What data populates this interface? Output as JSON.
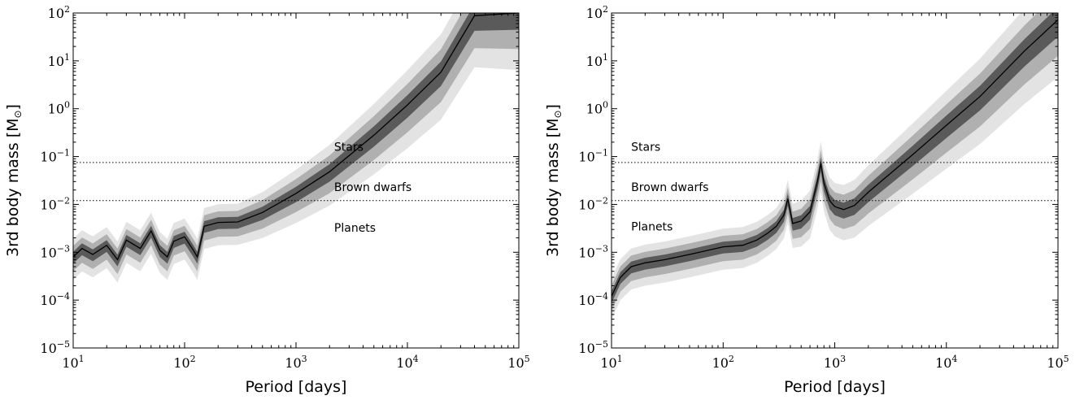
{
  "chart_data": [
    {
      "type": "area",
      "xlabel": "Period [days]",
      "ylabel": "3rd body mass [M",
      "ylabel_sub": "⊙",
      "ylabel_close": "]",
      "x_scale": "log",
      "y_scale": "log",
      "xlim": [
        10,
        100000
      ],
      "ylim": [
        1e-05,
        100
      ],
      "x_ticks": [
        {
          "base": "10",
          "exp": "1"
        },
        {
          "base": "10",
          "exp": "2"
        },
        {
          "base": "10",
          "exp": "3"
        },
        {
          "base": "10",
          "exp": "4"
        },
        {
          "base": "10",
          "exp": "5"
        }
      ],
      "y_ticks": [
        {
          "base": "10",
          "exp": "−5"
        },
        {
          "base": "10",
          "exp": "−4"
        },
        {
          "base": "10",
          "exp": "−3"
        },
        {
          "base": "10",
          "exp": "−2"
        },
        {
          "base": "10",
          "exp": "−1"
        },
        {
          "base": "10",
          "exp": "0"
        },
        {
          "base": "10",
          "exp": "1"
        },
        {
          "base": "10",
          "exp": "2"
        }
      ],
      "hlines": [
        0.075,
        0.012
      ],
      "region_labels": [
        {
          "text": "Stars",
          "x": 2200,
          "y": 0.16
        },
        {
          "text": "Brown dwarfs",
          "x": 2200,
          "y": 0.023
        },
        {
          "text": "Planets",
          "x": 2200,
          "y": 0.0033
        }
      ],
      "series": [
        {
          "x": [
            10,
            12,
            15,
            20,
            25,
            30,
            40,
            50,
            60,
            70,
            80,
            100,
            120,
            130,
            150,
            200,
            300,
            500,
            1000,
            2000,
            5000,
            10000,
            20000,
            40000,
            100000
          ],
          "y": [
            0.0008,
            0.0012,
            0.0009,
            0.0014,
            0.0007,
            0.0018,
            0.0012,
            0.0028,
            0.0011,
            0.0008,
            0.0017,
            0.0021,
            0.0011,
            0.0008,
            0.0035,
            0.0042,
            0.0043,
            0.0068,
            0.017,
            0.048,
            0.28,
            1.2,
            5.8,
            88,
            100
          ]
        }
      ]
    },
    {
      "type": "area",
      "xlabel": "Period [days]",
      "ylabel": "3rd body mass [M",
      "ylabel_sub": "⊙",
      "ylabel_close": "]",
      "x_scale": "log",
      "y_scale": "log",
      "xlim": [
        10,
        100000
      ],
      "ylim": [
        1e-05,
        100
      ],
      "x_ticks": [
        {
          "base": "10",
          "exp": "1"
        },
        {
          "base": "10",
          "exp": "2"
        },
        {
          "base": "10",
          "exp": "3"
        },
        {
          "base": "10",
          "exp": "4"
        },
        {
          "base": "10",
          "exp": "5"
        }
      ],
      "y_ticks": [
        {
          "base": "10",
          "exp": "−5"
        },
        {
          "base": "10",
          "exp": "−4"
        },
        {
          "base": "10",
          "exp": "−3"
        },
        {
          "base": "10",
          "exp": "−2"
        },
        {
          "base": "10",
          "exp": "−1"
        },
        {
          "base": "10",
          "exp": "0"
        },
        {
          "base": "10",
          "exp": "1"
        },
        {
          "base": "10",
          "exp": "2"
        }
      ],
      "hlines": [
        0.075,
        0.012
      ],
      "region_labels": [
        {
          "text": "Stars",
          "x": 15,
          "y": 0.16
        },
        {
          "text": "Brown dwarfs",
          "x": 15,
          "y": 0.023
        },
        {
          "text": "Planets",
          "x": 15,
          "y": 0.0035
        }
      ],
      "series": [
        {
          "x": [
            10,
            12,
            15,
            20,
            30,
            50,
            100,
            150,
            200,
            250,
            300,
            350,
            380,
            420,
            500,
            600,
            700,
            750,
            800,
            900,
            1000,
            1200,
            1500,
            2000,
            5000,
            10000,
            20000,
            50000,
            100000
          ],
          "y": [
            0.00012,
            0.0003,
            0.0005,
            0.0006,
            0.0007,
            0.0009,
            0.0013,
            0.0014,
            0.0018,
            0.0025,
            0.0035,
            0.006,
            0.013,
            0.004,
            0.0045,
            0.007,
            0.03,
            0.072,
            0.028,
            0.012,
            0.009,
            0.0078,
            0.0095,
            0.018,
            0.11,
            0.45,
            1.8,
            16,
            72
          ]
        }
      ]
    }
  ]
}
